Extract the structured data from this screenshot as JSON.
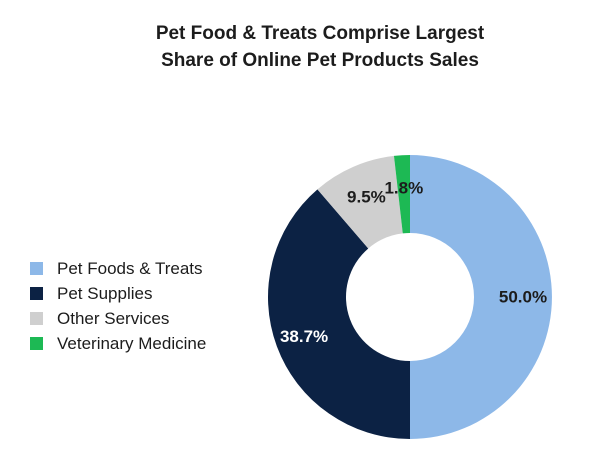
{
  "chart_data": {
    "type": "pie",
    "title_lines": [
      "Pet Food & Treats Comprise Largest",
      "Share of Online Pet Products Sales"
    ],
    "categories": [
      "Pet Foods & Treats",
      "Pet Supplies",
      "Other Services",
      "Veterinary Medicine"
    ],
    "values": [
      50.0,
      38.7,
      9.5,
      1.8
    ],
    "labels": [
      "50.0%",
      "38.7%",
      "9.5%",
      "1.8%"
    ],
    "colors": [
      "#8db8e8",
      "#0c2244",
      "#cfcfcf",
      "#1db954"
    ],
    "label_colors": [
      "#1c1c1c",
      "#ffffff",
      "#1c1c1c",
      "#1c1c1c"
    ],
    "legend_position": "left",
    "donut": true
  }
}
